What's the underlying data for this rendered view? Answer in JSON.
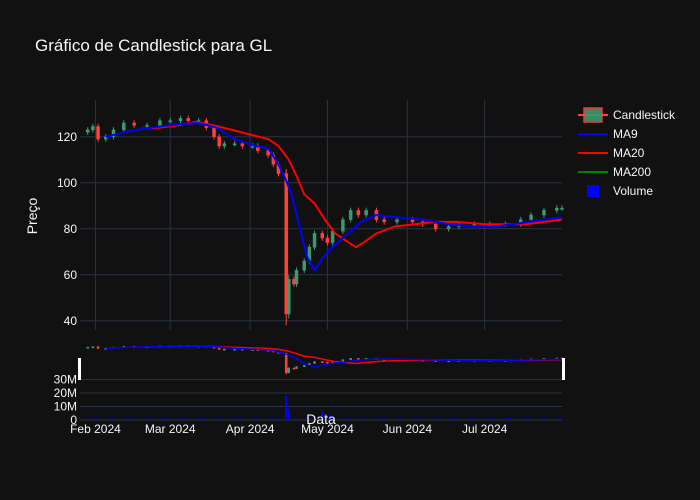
{
  "chart_data": {
    "type": "candlestick",
    "title": "Gráfico de Candlestick para GL",
    "ylabel": "Preço",
    "xlabel": "Data",
    "price_ylim": [
      36,
      136
    ],
    "price_yticks": [
      40,
      60,
      80,
      100,
      120
    ],
    "volume_ylim": [
      0,
      46000000
    ],
    "volume_yticks": [
      0,
      10000000,
      20000000,
      30000000
    ],
    "volume_ytick_labels": [
      "0",
      "10M",
      "20M",
      "30M"
    ],
    "xlim": [
      "2024-01-26",
      "2024-07-31"
    ],
    "xticks": [
      "2024-02-01",
      "2024-03-01",
      "2024-04-01",
      "2024-05-01",
      "2024-06-01",
      "2024-07-01"
    ],
    "xtick_labels": [
      "Feb 2024",
      "Mar 2024",
      "Apr 2024",
      "May 2024",
      "Jun 2024",
      "Jul 2024"
    ],
    "legend": [
      {
        "name": "Candlestick",
        "kind": "candle"
      },
      {
        "name": "MA9",
        "kind": "line",
        "color": "#0000ff"
      },
      {
        "name": "MA20",
        "kind": "line",
        "color": "#ff0000"
      },
      {
        "name": "MA200",
        "kind": "line",
        "color": "#008000"
      },
      {
        "name": "Volume",
        "kind": "square",
        "color": "#0000ff"
      }
    ],
    "legend_position": "top-right",
    "colors": {
      "increasing": "#3d9970",
      "decreasing": "#ff4136",
      "ma9": "#0000ff",
      "ma20": "#ff0000",
      "ma200": "#008000",
      "volume": "#0000ff",
      "background": "#111111",
      "grid": "#283442"
    },
    "close_points": [
      [
        "2024-01-26",
        122
      ],
      [
        "2024-01-29",
        123
      ],
      [
        "2024-01-31",
        124.5
      ],
      [
        "2024-02-02",
        119
      ],
      [
        "2024-02-05",
        120
      ],
      [
        "2024-02-08",
        123
      ],
      [
        "2024-02-12",
        126
      ],
      [
        "2024-02-16",
        125
      ],
      [
        "2024-02-21",
        125
      ],
      [
        "2024-02-26",
        127
      ],
      [
        "2024-03-01",
        127
      ],
      [
        "2024-03-05",
        128
      ],
      [
        "2024-03-08",
        127
      ],
      [
        "2024-03-12",
        127
      ],
      [
        "2024-03-15",
        124
      ],
      [
        "2024-03-18",
        120
      ],
      [
        "2024-03-20",
        116
      ],
      [
        "2024-03-22",
        117
      ],
      [
        "2024-03-26",
        117
      ],
      [
        "2024-03-29",
        116
      ],
      [
        "2024-04-02",
        116
      ],
      [
        "2024-04-04",
        114
      ],
      [
        "2024-04-08",
        112
      ],
      [
        "2024-04-10",
        108
      ],
      [
        "2024-04-12",
        104
      ],
      [
        "2024-04-15",
        43
      ],
      [
        "2024-04-16",
        58
      ],
      [
        "2024-04-18",
        56
      ],
      [
        "2024-04-19",
        62
      ],
      [
        "2024-04-22",
        66
      ],
      [
        "2024-04-24",
        72
      ],
      [
        "2024-04-26",
        78
      ],
      [
        "2024-04-29",
        76
      ],
      [
        "2024-05-01",
        74
      ],
      [
        "2024-05-03",
        79
      ],
      [
        "2024-05-07",
        84
      ],
      [
        "2024-05-10",
        88
      ],
      [
        "2024-05-13",
        86
      ],
      [
        "2024-05-16",
        88
      ],
      [
        "2024-05-20",
        84
      ],
      [
        "2024-05-23",
        83
      ],
      [
        "2024-05-28",
        84
      ],
      [
        "2024-06-03",
        83
      ],
      [
        "2024-06-07",
        82
      ],
      [
        "2024-06-12",
        80
      ],
      [
        "2024-06-17",
        81
      ],
      [
        "2024-06-21",
        82
      ],
      [
        "2024-06-27",
        82
      ],
      [
        "2024-07-03",
        82
      ],
      [
        "2024-07-09",
        82
      ],
      [
        "2024-07-15",
        84
      ],
      [
        "2024-07-19",
        86
      ],
      [
        "2024-07-24",
        88
      ],
      [
        "2024-07-29",
        89
      ],
      [
        "2024-07-31",
        89
      ]
    ],
    "ma9": [
      [
        "2024-02-05",
        120
      ],
      [
        "2024-02-14",
        122.5
      ],
      [
        "2024-02-23",
        124
      ],
      [
        "2024-03-04",
        125.5
      ],
      [
        "2024-03-12",
        126
      ],
      [
        "2024-03-19",
        124
      ],
      [
        "2024-03-26",
        119
      ],
      [
        "2024-04-03",
        116
      ],
      [
        "2024-04-08",
        115
      ],
      [
        "2024-04-12",
        108
      ],
      [
        "2024-04-15",
        101
      ],
      [
        "2024-04-17",
        95
      ],
      [
        "2024-04-20",
        82
      ],
      [
        "2024-04-23",
        68
      ],
      [
        "2024-04-26",
        62
      ],
      [
        "2024-04-29",
        67
      ],
      [
        "2024-05-02",
        71
      ],
      [
        "2024-05-06",
        75
      ],
      [
        "2024-05-10",
        79
      ],
      [
        "2024-05-14",
        83
      ],
      [
        "2024-05-20",
        86
      ],
      [
        "2024-05-28",
        85
      ],
      [
        "2024-06-07",
        84
      ],
      [
        "2024-06-17",
        82
      ],
      [
        "2024-06-27",
        81
      ],
      [
        "2024-07-05",
        81
      ],
      [
        "2024-07-12",
        82
      ],
      [
        "2024-07-18",
        83
      ],
      [
        "2024-07-24",
        84
      ],
      [
        "2024-07-31",
        85
      ]
    ],
    "ma20": [
      [
        "2024-02-19",
        123.5
      ],
      [
        "2024-02-26",
        124
      ],
      [
        "2024-03-04",
        125
      ],
      [
        "2024-03-11",
        126.5
      ],
      [
        "2024-03-18",
        125
      ],
      [
        "2024-03-25",
        123
      ],
      [
        "2024-04-01",
        121
      ],
      [
        "2024-04-08",
        119
      ],
      [
        "2024-04-12",
        116
      ],
      [
        "2024-04-16",
        110
      ],
      [
        "2024-04-19",
        103
      ],
      [
        "2024-04-22",
        95
      ],
      [
        "2024-04-26",
        91
      ],
      [
        "2024-04-30",
        84
      ],
      [
        "2024-05-04",
        78
      ],
      [
        "2024-05-08",
        75
      ],
      [
        "2024-05-12",
        72
      ],
      [
        "2024-05-15",
        74
      ],
      [
        "2024-05-20",
        78
      ],
      [
        "2024-05-27",
        81
      ],
      [
        "2024-06-04",
        82
      ],
      [
        "2024-06-12",
        83
      ],
      [
        "2024-06-20",
        83
      ],
      [
        "2024-07-01",
        82
      ],
      [
        "2024-07-10",
        82
      ],
      [
        "2024-07-17",
        82
      ],
      [
        "2024-07-24",
        83
      ],
      [
        "2024-07-31",
        84
      ]
    ],
    "volume_spikes": [
      [
        "2024-04-15",
        18000000
      ],
      [
        "2024-04-16",
        8000000
      ],
      [
        "2024-04-29",
        6000000
      ],
      [
        "2024-05-02",
        3000000
      ],
      [
        "2024-06-01",
        7000000
      ],
      [
        "2024-07-10",
        1500000
      ]
    ],
    "volume_baseline": 1000000
  }
}
